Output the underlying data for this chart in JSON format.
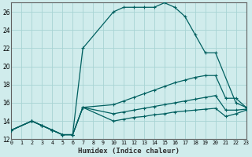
{
  "xlabel": "Humidex (Indice chaleur)",
  "background_color": "#d0ecec",
  "grid_color": "#a8d4d4",
  "line_color": "#006060",
  "xlim": [
    0,
    23
  ],
  "ylim": [
    12,
    27
  ],
  "yticks": [
    12,
    14,
    16,
    18,
    20,
    22,
    24,
    26
  ],
  "xticks": [
    0,
    1,
    2,
    3,
    4,
    5,
    6,
    7,
    8,
    9,
    10,
    11,
    12,
    13,
    14,
    15,
    16,
    17,
    18,
    19,
    20,
    21,
    22,
    23
  ],
  "curves": [
    {
      "x": [
        0,
        2,
        3,
        4,
        5,
        6,
        7,
        10,
        11,
        12,
        13,
        14,
        15,
        16,
        17,
        18,
        19,
        20,
        22,
        23
      ],
      "y": [
        13,
        14,
        13.5,
        13,
        12.5,
        12.5,
        22,
        26,
        26.5,
        26.5,
        26.5,
        26.5,
        27,
        26.5,
        25.5,
        23.5,
        21.5,
        21.5,
        16,
        15.5
      ]
    },
    {
      "x": [
        0,
        2,
        3,
        4,
        5,
        6,
        7,
        10,
        11,
        12,
        13,
        14,
        15,
        16,
        17,
        18,
        19,
        20,
        21,
        22,
        23
      ],
      "y": [
        13,
        14,
        13.5,
        13,
        12.5,
        12.5,
        15.5,
        15.8,
        16.2,
        16.6,
        17,
        17.4,
        17.8,
        18.2,
        18.5,
        18.8,
        19.0,
        19.0,
        16.5,
        16.5,
        15.5
      ]
    },
    {
      "x": [
        0,
        2,
        3,
        4,
        5,
        6,
        7,
        10,
        11,
        12,
        13,
        14,
        15,
        16,
        17,
        18,
        19,
        20,
        21,
        22,
        23
      ],
      "y": [
        13,
        14,
        13.5,
        13,
        12.5,
        12.5,
        15.5,
        14.8,
        15.0,
        15.2,
        15.4,
        15.6,
        15.8,
        16.0,
        16.2,
        16.4,
        16.6,
        16.8,
        15.2,
        15.2,
        15.3
      ]
    },
    {
      "x": [
        0,
        2,
        3,
        4,
        5,
        6,
        7,
        10,
        11,
        12,
        13,
        14,
        15,
        16,
        17,
        18,
        19,
        20,
        21,
        22,
        23
      ],
      "y": [
        13,
        14,
        13.5,
        13,
        12.5,
        12.5,
        15.5,
        14.0,
        14.2,
        14.4,
        14.5,
        14.7,
        14.8,
        15.0,
        15.1,
        15.2,
        15.3,
        15.4,
        14.5,
        14.8,
        15.2
      ]
    }
  ]
}
